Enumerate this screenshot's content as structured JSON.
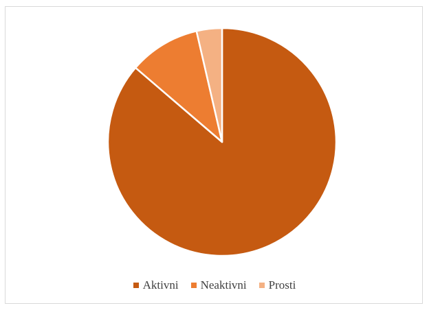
{
  "chart_data": {
    "type": "pie",
    "title": "",
    "legend_position": "bottom",
    "categories": [
      "Aktivni",
      "Neaktivni",
      "Prosti"
    ],
    "values": [
      86.3,
      10.1,
      3.6
    ],
    "colors": [
      "#c55a11",
      "#ed7d31",
      "#f4b183"
    ],
    "start_angle_deg": 0,
    "direction": "clockwise",
    "slice_separator_color": "#ffffff"
  }
}
